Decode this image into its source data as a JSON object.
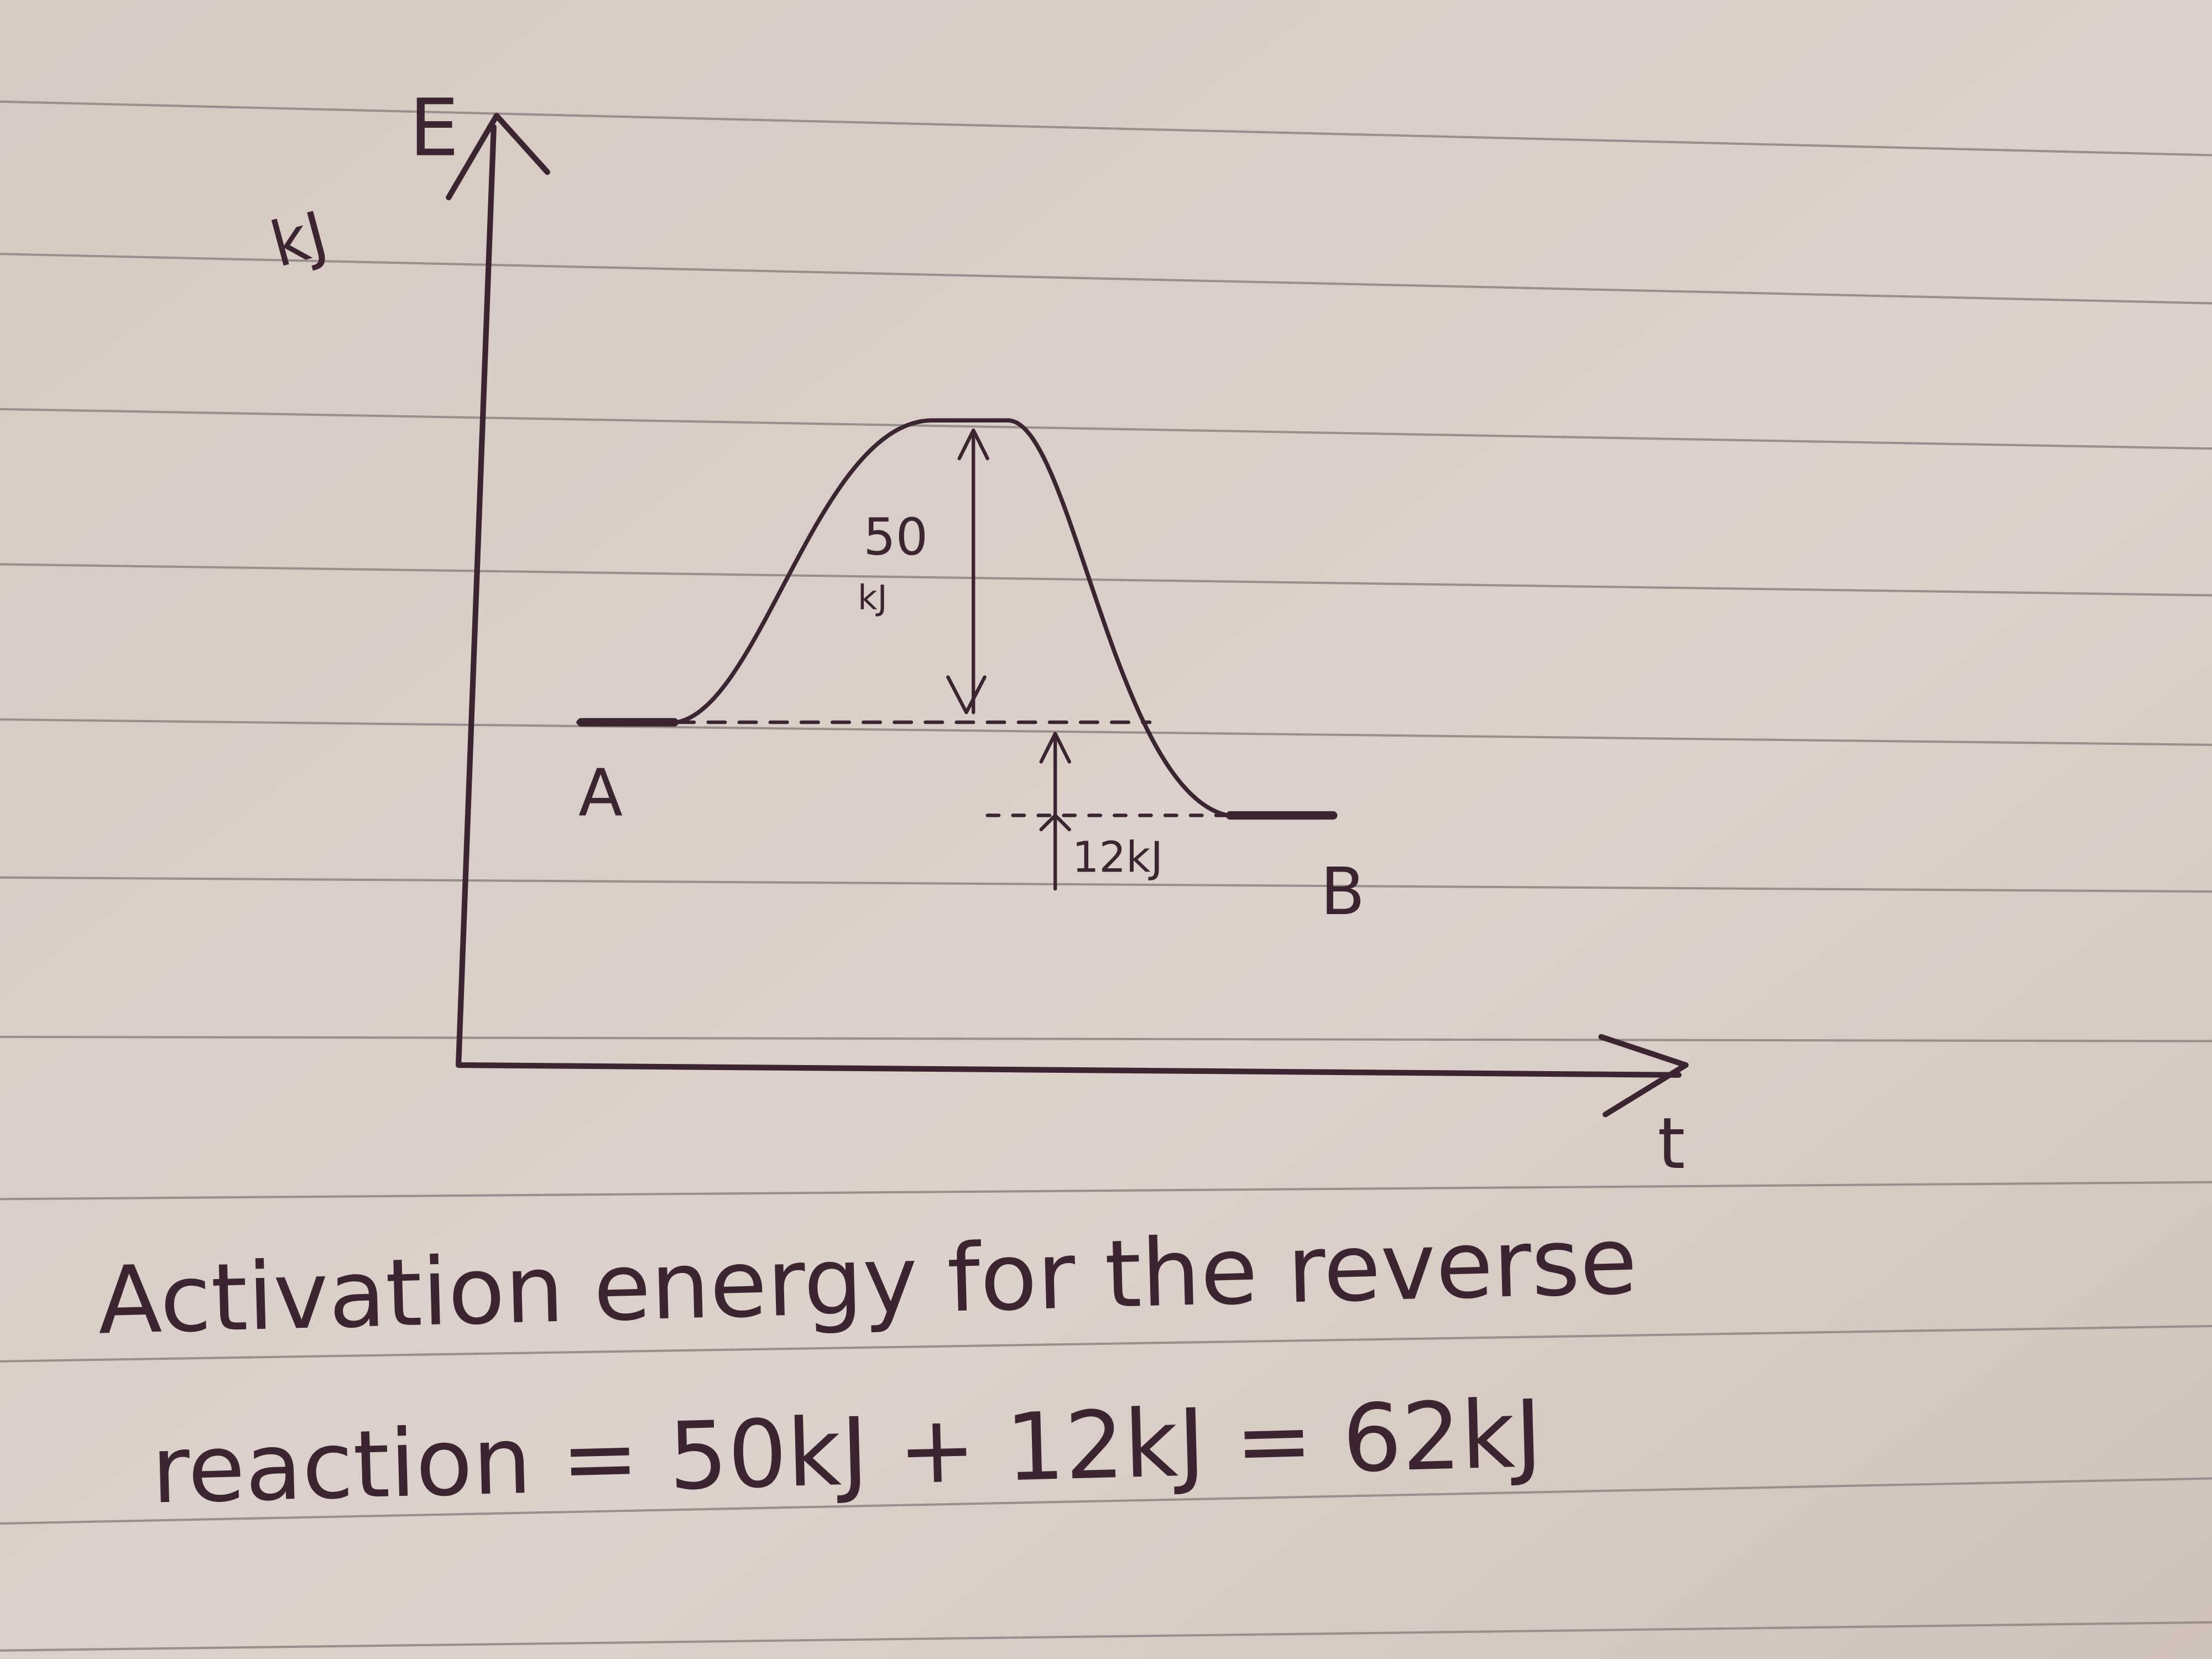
{
  "axes": {
    "y_label": "E",
    "y_unit": "kJ",
    "x_label": "t"
  },
  "diagram": {
    "start_label": "A",
    "end_label": "B",
    "activation_label": {
      "value": "50",
      "unit": "kJ"
    },
    "difference_label": "12kJ"
  },
  "caption": {
    "lines": [
      "Activation energy for the reverse",
      "reaction = 50kJ + 12kJ = 62kJ"
    ]
  }
}
